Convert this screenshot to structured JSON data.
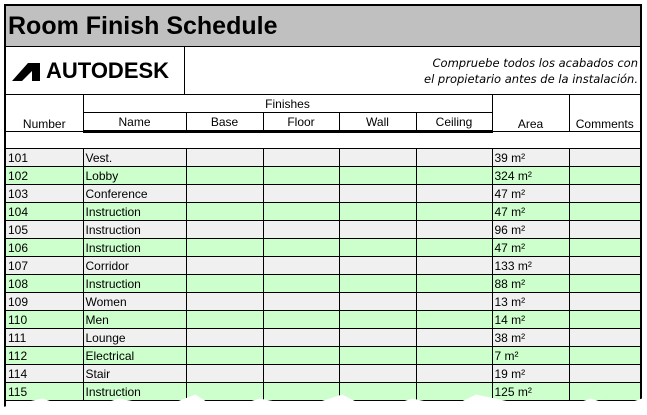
{
  "title": "Room Finish Schedule",
  "logo": "AUTODESK",
  "note": [
    "Compruebe todos los acabados con",
    "el propietario antes de la instalación."
  ],
  "headers": {
    "number": "Number",
    "group": "Finishes",
    "name": "Name",
    "base": "Base",
    "floor": "Floor",
    "wall": "Wall",
    "ceiling": "Ceiling",
    "area": "Area",
    "comments": "Comments"
  },
  "colors": {
    "title_bg": "#c0c0c0",
    "row_green": "#ccffcc",
    "row_gray": "#f0f0f0"
  },
  "rows": [
    {
      "number": "101",
      "name": "Vest.",
      "area": "39 m²"
    },
    {
      "number": "102",
      "name": "Lobby",
      "area": "324 m²"
    },
    {
      "number": "103",
      "name": "Conference",
      "area": "47 m²"
    },
    {
      "number": "104",
      "name": "Instruction",
      "area": "47 m²"
    },
    {
      "number": "105",
      "name": "Instruction",
      "area": "96 m²"
    },
    {
      "number": "106",
      "name": "Instruction",
      "area": "47 m²"
    },
    {
      "number": "107",
      "name": "Corridor",
      "area": "133 m²"
    },
    {
      "number": "108",
      "name": "Instruction",
      "area": "88 m²"
    },
    {
      "number": "109",
      "name": "Women",
      "area": "13 m²"
    },
    {
      "number": "110",
      "name": "Men",
      "area": "14 m²"
    },
    {
      "number": "111",
      "name": "Lounge",
      "area": "38 m²"
    },
    {
      "number": "112",
      "name": "Electrical",
      "area": "7 m²"
    },
    {
      "number": "114",
      "name": "Stair",
      "area": "19 m²"
    },
    {
      "number": "115",
      "name": "Instruction",
      "area": "125 m²"
    }
  ]
}
